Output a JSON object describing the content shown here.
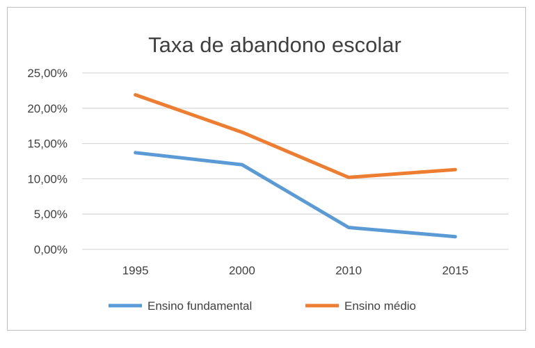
{
  "chart_data": {
    "type": "line",
    "title": "Taxa de abandono escolar",
    "categories": [
      "1995",
      "2000",
      "2010",
      "2015"
    ],
    "yticks": [
      "0,00%",
      "5,00%",
      "10,00%",
      "15,00%",
      "20,00%",
      "25,00%"
    ],
    "ylim": [
      0,
      25
    ],
    "grid": true,
    "legend_position": "bottom",
    "series": [
      {
        "name": "Ensino fundamental",
        "values": [
          13.7,
          12.0,
          3.1,
          1.8
        ],
        "color": "#5b9bd5"
      },
      {
        "name": "Ensino médio",
        "values": [
          21.9,
          16.6,
          10.2,
          11.3
        ],
        "color": "#ed7d31"
      }
    ]
  }
}
